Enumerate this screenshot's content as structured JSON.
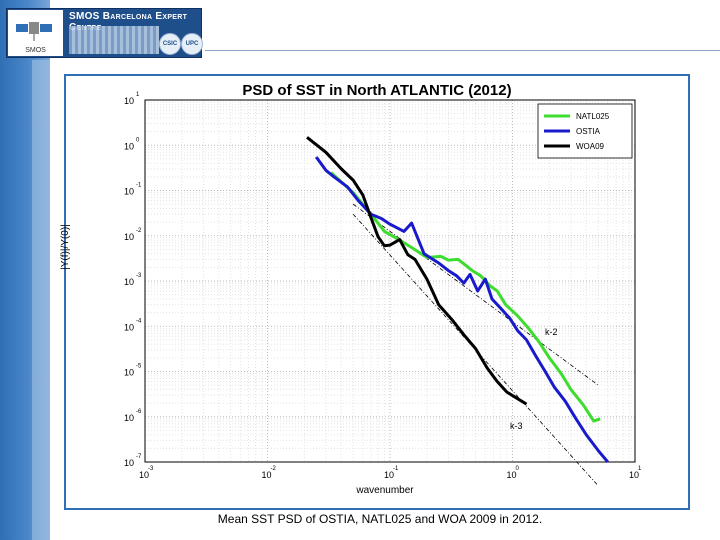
{
  "header": {
    "logo_title": "SMOS Barcelona Expert Centre",
    "logo_small": "SMOS",
    "seal_left": "CSIC",
    "seal_right": "UPC"
  },
  "caption": "Mean SST PSD of OSTIA, NATL025 and WOA 2009 in 2012.",
  "chart_data": {
    "type": "line",
    "title": "PSD of SST in North ATLANTIC (2012)",
    "xlabel": "wavenumber",
    "ylabel": "|Y(f)|/Y(0)|",
    "x_scale": "log",
    "y_scale": "log",
    "xlim": [
      0.001,
      10
    ],
    "ylim": [
      1e-07,
      10
    ],
    "x_ticks": [
      {
        "value": 0.001,
        "base": "10",
        "exp": "-3"
      },
      {
        "value": 0.01,
        "base": "10",
        "exp": "-2"
      },
      {
        "value": 0.1,
        "base": "10",
        "exp": "-1"
      },
      {
        "value": 1,
        "base": "10",
        "exp": "0"
      },
      {
        "value": 10,
        "base": "10",
        "exp": "1"
      }
    ],
    "y_ticks": [
      {
        "value": 10,
        "base": "10",
        "exp": "1"
      },
      {
        "value": 1,
        "base": "10",
        "exp": "0"
      },
      {
        "value": 0.1,
        "base": "10",
        "exp": "-1"
      },
      {
        "value": 0.01,
        "base": "10",
        "exp": "-2"
      },
      {
        "value": 0.001,
        "base": "10",
        "exp": "-3"
      },
      {
        "value": 0.0001,
        "base": "10",
        "exp": "-4"
      },
      {
        "value": 1e-05,
        "base": "10",
        "exp": "-5"
      },
      {
        "value": 1e-06,
        "base": "10",
        "exp": "-6"
      },
      {
        "value": 1e-07,
        "base": "10",
        "exp": "-7"
      }
    ],
    "grid": true,
    "legend_position": "top-right",
    "series": [
      {
        "name": "NATL025",
        "color": "#3ddc2f",
        "points": [
          [
            0.033,
            0.25
          ],
          [
            0.05,
            0.09
          ],
          [
            0.07,
            0.03
          ],
          [
            0.09,
            0.0125
          ],
          [
            0.12,
            0.008
          ],
          [
            0.15,
            0.0055
          ],
          [
            0.2,
            0.0033
          ],
          [
            0.26,
            0.0035
          ],
          [
            0.3,
            0.0029
          ],
          [
            0.36,
            0.003
          ],
          [
            0.4,
            0.0024
          ],
          [
            0.47,
            0.0017
          ],
          [
            0.55,
            0.0013
          ],
          [
            0.65,
            0.0008
          ],
          [
            0.75,
            0.0006
          ],
          [
            0.88,
            0.0003
          ],
          [
            1.1,
            0.00017
          ],
          [
            1.35,
            9e-05
          ],
          [
            1.65,
            4.5e-05
          ],
          [
            2.0,
            2e-05
          ],
          [
            2.5,
            9e-06
          ],
          [
            3.0,
            4e-06
          ],
          [
            3.8,
            1.8e-06
          ],
          [
            4.6,
            8e-07
          ],
          [
            5.2,
            9e-07
          ]
        ]
      },
      {
        "name": "OSTIA",
        "color": "#1a1acc",
        "points": [
          [
            0.025,
            0.55
          ],
          [
            0.03,
            0.28
          ],
          [
            0.035,
            0.2
          ],
          [
            0.045,
            0.12
          ],
          [
            0.055,
            0.06
          ],
          [
            0.07,
            0.03
          ],
          [
            0.085,
            0.024
          ],
          [
            0.1,
            0.018
          ],
          [
            0.13,
            0.0125
          ],
          [
            0.15,
            0.019
          ],
          [
            0.19,
            0.004
          ],
          [
            0.25,
            0.0025
          ],
          [
            0.3,
            0.0017
          ],
          [
            0.35,
            0.0013
          ],
          [
            0.4,
            0.0009
          ],
          [
            0.45,
            0.0014
          ],
          [
            0.52,
            0.0006
          ],
          [
            0.6,
            0.0011
          ],
          [
            0.68,
            0.0004
          ],
          [
            0.8,
            0.00025
          ],
          [
            0.95,
            0.00015
          ],
          [
            1.1,
            8e-05
          ],
          [
            1.3,
            5e-05
          ],
          [
            1.55,
            2.2e-05
          ],
          [
            1.85,
            1e-05
          ],
          [
            2.2,
            4.5e-06
          ],
          [
            2.7,
            2.2e-06
          ],
          [
            3.3,
            9e-07
          ],
          [
            4.0,
            4e-07
          ],
          [
            5.0,
            1.8e-07
          ],
          [
            6.0,
            1e-07
          ]
        ]
      },
      {
        "name": "WOA09",
        "color": "#000000",
        "points": [
          [
            0.021,
            1.5
          ],
          [
            0.03,
            0.7
          ],
          [
            0.04,
            0.3
          ],
          [
            0.05,
            0.17
          ],
          [
            0.06,
            0.08
          ],
          [
            0.07,
            0.025
          ],
          [
            0.08,
            0.0095
          ],
          [
            0.09,
            0.006
          ],
          [
            0.1,
            0.0062
          ],
          [
            0.12,
            0.0082
          ],
          [
            0.14,
            0.0038
          ],
          [
            0.16,
            0.003
          ],
          [
            0.2,
            0.0011
          ],
          [
            0.25,
            0.0003
          ],
          [
            0.32,
            0.00014
          ],
          [
            0.4,
            6.5e-05
          ],
          [
            0.5,
            3.2e-05
          ],
          [
            0.62,
            1.2e-05
          ],
          [
            0.75,
            6e-06
          ],
          [
            0.9,
            3.5e-06
          ],
          [
            1.1,
            2.5e-06
          ],
          [
            1.3,
            1.9e-06
          ]
        ]
      }
    ],
    "reference_lines": [
      {
        "label": "k-2",
        "points": [
          [
            0.05,
            0.05
          ],
          [
            5.0,
            5e-06
          ]
        ]
      },
      {
        "label": "k-3",
        "points": [
          [
            0.05,
            0.03
          ],
          [
            5.0,
            3e-08
          ]
        ]
      }
    ]
  }
}
